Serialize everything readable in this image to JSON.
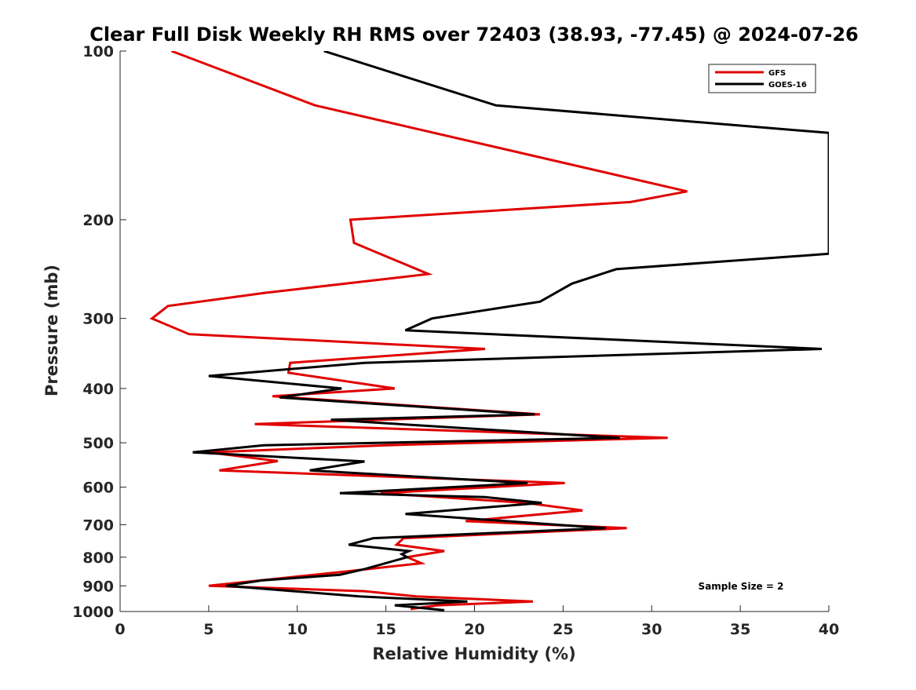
{
  "chart_data": {
    "type": "line",
    "title": "Clear Full Disk Weekly RH RMS over 72403 (38.93, -77.45) @ 2024-07-26",
    "xlabel": "Relative Humidity (%)",
    "ylabel": "Pressure (mb)",
    "xlim": [
      0,
      40
    ],
    "ylim": [
      100,
      1000
    ],
    "y_scale": "log",
    "y_reversed": true,
    "x_ticks": [
      "0",
      "5",
      "10",
      "15",
      "20",
      "25",
      "30",
      "35",
      "40"
    ],
    "y_ticks": [
      "100",
      "200",
      "300",
      "400",
      "500",
      "600",
      "700",
      "800",
      "900",
      "1000"
    ],
    "grid": false,
    "legend_placement": "top-right",
    "annotation": "Sample Size = 2",
    "series": [
      {
        "name": "GFS",
        "color": "#e00000",
        "points": [
          [
            2.9,
            100
          ],
          [
            11.0,
            125
          ],
          [
            32.0,
            178
          ],
          [
            28.8,
            186
          ],
          [
            13.0,
            200
          ],
          [
            13.2,
            220
          ],
          [
            17.4,
            250
          ],
          [
            8.2,
            270
          ],
          [
            2.7,
            285
          ],
          [
            1.8,
            300
          ],
          [
            3.9,
            320
          ],
          [
            20.6,
            340
          ],
          [
            9.6,
            360
          ],
          [
            9.5,
            375
          ],
          [
            15.5,
            400
          ],
          [
            8.6,
            413
          ],
          [
            23.7,
            445
          ],
          [
            7.6,
            463
          ],
          [
            30.9,
            490
          ],
          [
            15.0,
            505
          ],
          [
            5.0,
            520
          ],
          [
            8.9,
            539
          ],
          [
            5.6,
            560
          ],
          [
            25.1,
            590
          ],
          [
            14.7,
            615
          ],
          [
            22.9,
            640
          ],
          [
            26.1,
            660
          ],
          [
            19.5,
            690
          ],
          [
            28.6,
            710
          ],
          [
            16.0,
            740
          ],
          [
            15.6,
            760
          ],
          [
            18.3,
            780
          ],
          [
            16.2,
            800
          ],
          [
            17.0,
            820
          ],
          [
            12.5,
            850
          ],
          [
            5.0,
            900
          ],
          [
            13.8,
            920
          ],
          [
            16.7,
            940
          ],
          [
            23.3,
            960
          ],
          [
            17.9,
            975
          ],
          [
            16.4,
            990
          ]
        ]
      },
      {
        "name": "GOES-16",
        "color": "#000000",
        "points": [
          [
            11.5,
            100
          ],
          [
            21.2,
            125
          ],
          [
            40.0,
            140
          ],
          [
            40.0,
            230
          ],
          [
            28.0,
            245
          ],
          [
            25.5,
            260
          ],
          [
            23.7,
            280
          ],
          [
            17.6,
            300
          ],
          [
            16.1,
            315
          ],
          [
            39.6,
            340
          ],
          [
            13.8,
            360
          ],
          [
            5.0,
            380
          ],
          [
            12.5,
            400
          ],
          [
            9.0,
            415
          ],
          [
            23.4,
            445
          ],
          [
            11.9,
            455
          ],
          [
            28.2,
            490
          ],
          [
            8.1,
            505
          ],
          [
            4.1,
            520
          ],
          [
            13.8,
            540
          ],
          [
            10.7,
            560
          ],
          [
            23.0,
            590
          ],
          [
            12.4,
            615
          ],
          [
            20.6,
            625
          ],
          [
            23.8,
            640
          ],
          [
            16.1,
            670
          ],
          [
            27.4,
            710
          ],
          [
            14.3,
            740
          ],
          [
            12.9,
            760
          ],
          [
            16.3,
            780
          ],
          [
            15.9,
            790
          ],
          [
            16.2,
            800
          ],
          [
            13.8,
            840
          ],
          [
            12.4,
            860
          ],
          [
            8.0,
            880
          ],
          [
            6.0,
            900
          ],
          [
            13.5,
            940
          ],
          [
            19.6,
            960
          ],
          [
            15.5,
            975
          ],
          [
            18.3,
            995
          ]
        ]
      }
    ]
  }
}
